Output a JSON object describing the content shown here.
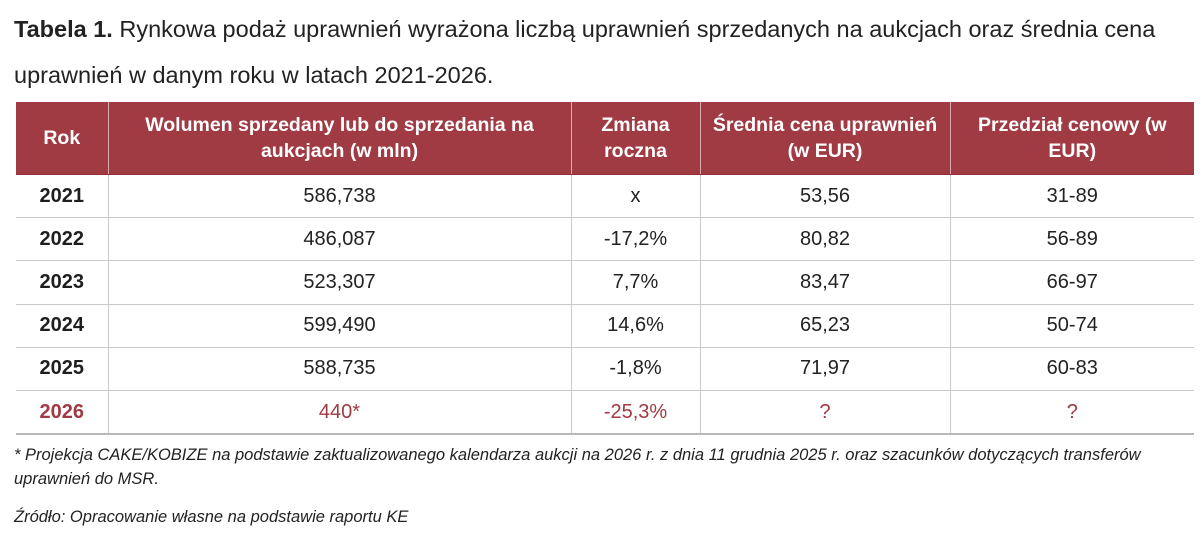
{
  "caption": {
    "label": "Tabela 1.",
    "text": "Rynkowa podaż uprawnień wyrażona liczbą uprawnień sprzedanych na aukcjach oraz średnia cena uprawnień w danym roku w latach 2021-2026."
  },
  "table": {
    "headers": [
      "Rok",
      "Wolumen sprzedany lub do sprzedania na aukcjach (w mln)",
      "Zmiana roczna",
      "Średnia cena uprawnień (w EUR)",
      "Przedział cenowy (w EUR)"
    ],
    "rows": [
      [
        "2021",
        "586,738",
        "x",
        "53,56",
        "31-89"
      ],
      [
        "2022",
        "486,087",
        "-17,2%",
        "80,82",
        "56-89"
      ],
      [
        "2023",
        "523,307",
        "7,7%",
        "83,47",
        "66-97"
      ],
      [
        "2024",
        "599,490",
        "14,6%",
        "65,23",
        "50-74"
      ],
      [
        "2025",
        "588,735",
        "-1,8%",
        "71,97",
        "60-83"
      ],
      [
        "2026",
        "440*",
        "-25,3%",
        "?",
        "?"
      ]
    ]
  },
  "footnote": "* Projekcja CAKE/KOBIZE na podstawie zaktualizowanego kalendarza aukcji na 2026 r. z dnia 11 grudnia 2025 r. oraz szacunków dotyczących transferów uprawnień do MSR.",
  "source": "Źródło: Opracowanie własne na podstawie raportu KE",
  "colors": {
    "header_bg": "#a03a43",
    "header_text": "#ffffff",
    "projection_text": "#a03a43",
    "body_text": "#222222"
  }
}
